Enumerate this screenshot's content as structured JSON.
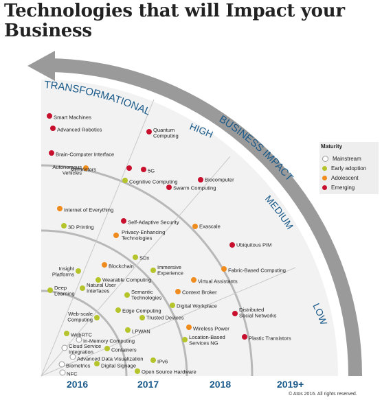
{
  "title": {
    "line1": "Technologies that will Impact your",
    "line2": "Business"
  },
  "arrow_label": "BUSINESS IMPACT",
  "impact_levels": {
    "transformational": "TRANSFORMATIONAL",
    "high": "HIGH",
    "medium": "MEDIUM",
    "low": "LOW"
  },
  "timeline": [
    "2016",
    "2017",
    "2018",
    "2019+"
  ],
  "legend": {
    "title": "Maturity",
    "items": [
      {
        "label": "Mainstream",
        "color": "#ffffff"
      },
      {
        "label": "Early adoption",
        "color": "#b5c42a"
      },
      {
        "label": "Adolescent",
        "color": "#f08c1e"
      },
      {
        "label": "Emerging",
        "color": "#c8102e"
      }
    ]
  },
  "technologies": [
    {
      "label": "Smart Machines",
      "maturity": "Emerging"
    },
    {
      "label": "Advanced Robotics",
      "maturity": "Emerging"
    },
    {
      "label": "Quantum Computing",
      "maturity": "Emerging"
    },
    {
      "label": "Brain-Computer Interface",
      "maturity": "Emerging"
    },
    {
      "label": "Autonomous Vehicles",
      "maturity": "Adolescent"
    },
    {
      "label": "Memristors",
      "maturity": "Emerging"
    },
    {
      "label": "5G",
      "maturity": "Emerging"
    },
    {
      "label": "Cognitive Computing",
      "maturity": "Early adoption"
    },
    {
      "label": "Biocomputer",
      "maturity": "Emerging"
    },
    {
      "label": "Swarm Computing",
      "maturity": "Emerging"
    },
    {
      "label": "Internet of Everything",
      "maturity": "Adolescent"
    },
    {
      "label": "Self-Adaptive Security",
      "maturity": "Emerging"
    },
    {
      "label": "3D Printing",
      "maturity": "Early adoption"
    },
    {
      "label": "Exascale",
      "maturity": "Adolescent"
    },
    {
      "label": "Privacy-Enhancing Technologies",
      "maturity": "Adolescent"
    },
    {
      "label": "Ubiquitous PIM",
      "maturity": "Emerging"
    },
    {
      "label": "SDx",
      "maturity": "Early adoption"
    },
    {
      "label": "Blockchain",
      "maturity": "Adolescent"
    },
    {
      "label": "Immersive Experience",
      "maturity": "Early adoption"
    },
    {
      "label": "Fabric-Based Computing",
      "maturity": "Adolescent"
    },
    {
      "label": "Insight Platforms",
      "maturity": "Early adoption"
    },
    {
      "label": "Wearable Computing",
      "maturity": "Early adoption"
    },
    {
      "label": "Virtual Assistants",
      "maturity": "Adolescent"
    },
    {
      "label": "Natural User Interfaces",
      "maturity": "Early adoption"
    },
    {
      "label": "Deep Learning",
      "maturity": "Early adoption"
    },
    {
      "label": "Semantic Technologies",
      "maturity": "Early adoption"
    },
    {
      "label": "Context Broker",
      "maturity": "Adolescent"
    },
    {
      "label": "Digital Workplace",
      "maturity": "Early adoption"
    },
    {
      "label": "Edge Computing",
      "maturity": "Early adoption"
    },
    {
      "label": "Distributed Social Networks",
      "maturity": "Emerging"
    },
    {
      "label": "Web-scale Computing",
      "maturity": "Early adoption"
    },
    {
      "label": "Trusted Devices",
      "maturity": "Early adoption"
    },
    {
      "label": "Wireless Power",
      "maturity": "Adolescent"
    },
    {
      "label": "WebRTC",
      "maturity": "Early adoption"
    },
    {
      "label": "LPWAN",
      "maturity": "Early adoption"
    },
    {
      "label": "Plastic Transistors",
      "maturity": "Emerging"
    },
    {
      "label": "In-Memory Computing",
      "maturity": "Mainstream"
    },
    {
      "label": "Location-Based Services NG",
      "maturity": "Early adoption"
    },
    {
      "label": "Cloud Service Integration",
      "maturity": "Mainstream"
    },
    {
      "label": "Containers",
      "maturity": "Early adoption"
    },
    {
      "label": "Advanced Data Visualization",
      "maturity": "Mainstream"
    },
    {
      "label": "IPv6",
      "maturity": "Early adoption"
    },
    {
      "label": "Biometrics",
      "maturity": "Mainstream"
    },
    {
      "label": "Digital Signage",
      "maturity": "Early adoption"
    },
    {
      "label": "Open Source Hardware",
      "maturity": "Early adoption"
    },
    {
      "label": "NFC",
      "maturity": "Mainstream"
    }
  ],
  "footer": "© Atos 2016. All rights reserved."
}
